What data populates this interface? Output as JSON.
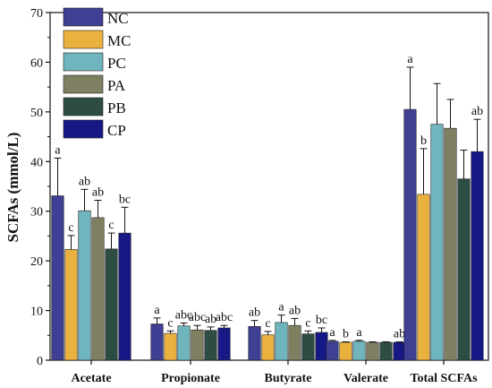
{
  "chart_data": {
    "type": "bar",
    "ylabel": "SCFAs (mmol/L)",
    "xlabel": "",
    "ylim": [
      0,
      70
    ],
    "yticks": [
      0,
      10,
      20,
      30,
      40,
      50,
      60,
      70
    ],
    "categories": [
      "Acetate",
      "Propionate",
      "Butyrate",
      "Valerate",
      "Total SCFAs"
    ],
    "legend_position": "top-left",
    "series": [
      {
        "name": "NC",
        "color": "#3f3f93",
        "values": [
          33.1,
          7.3,
          6.8,
          3.8,
          50.5
        ],
        "errors": [
          7.6,
          1.2,
          1.2,
          0.2,
          8.5
        ],
        "labels": [
          "a",
          "a",
          "ab",
          "a",
          "a"
        ]
      },
      {
        "name": "MC",
        "color": "#eab13e",
        "values": [
          22.3,
          5.4,
          5.1,
          3.6,
          33.4
        ],
        "errors": [
          2.8,
          0.5,
          0.7,
          0.1,
          9.2
        ],
        "labels": [
          "c",
          "c",
          "c",
          "b",
          "b"
        ]
      },
      {
        "name": "PC",
        "color": "#6fb5bd",
        "values": [
          30.1,
          6.9,
          7.6,
          3.8,
          47.5
        ],
        "errors": [
          4.3,
          0.6,
          1.5,
          0.2,
          8.2
        ],
        "labels": [
          "ab",
          "abc",
          "a",
          "a",
          ""
        ]
      },
      {
        "name": "PA",
        "color": "#7f7f62",
        "values": [
          28.7,
          6.1,
          7.0,
          3.6,
          46.7
        ],
        "errors": [
          3.5,
          0.9,
          1.4,
          0.1,
          5.8
        ],
        "labels": [
          "ab",
          "abc",
          "ab",
          "",
          ""
        ]
      },
      {
        "name": "PB",
        "color": "#2c4c44",
        "values": [
          22.4,
          6.0,
          5.3,
          3.6,
          36.5
        ],
        "errors": [
          3.2,
          0.7,
          0.6,
          0.1,
          5.8
        ],
        "labels": [
          "c",
          "ab",
          "c",
          "",
          ""
        ]
      },
      {
        "name": "CP",
        "color": "#161886",
        "values": [
          25.6,
          6.5,
          5.6,
          3.6,
          42.0
        ],
        "errors": [
          5.2,
          0.5,
          0.9,
          0.1,
          6.5
        ],
        "labels": [
          "bc",
          "abc",
          "bc",
          "ab",
          "ab"
        ]
      }
    ]
  }
}
